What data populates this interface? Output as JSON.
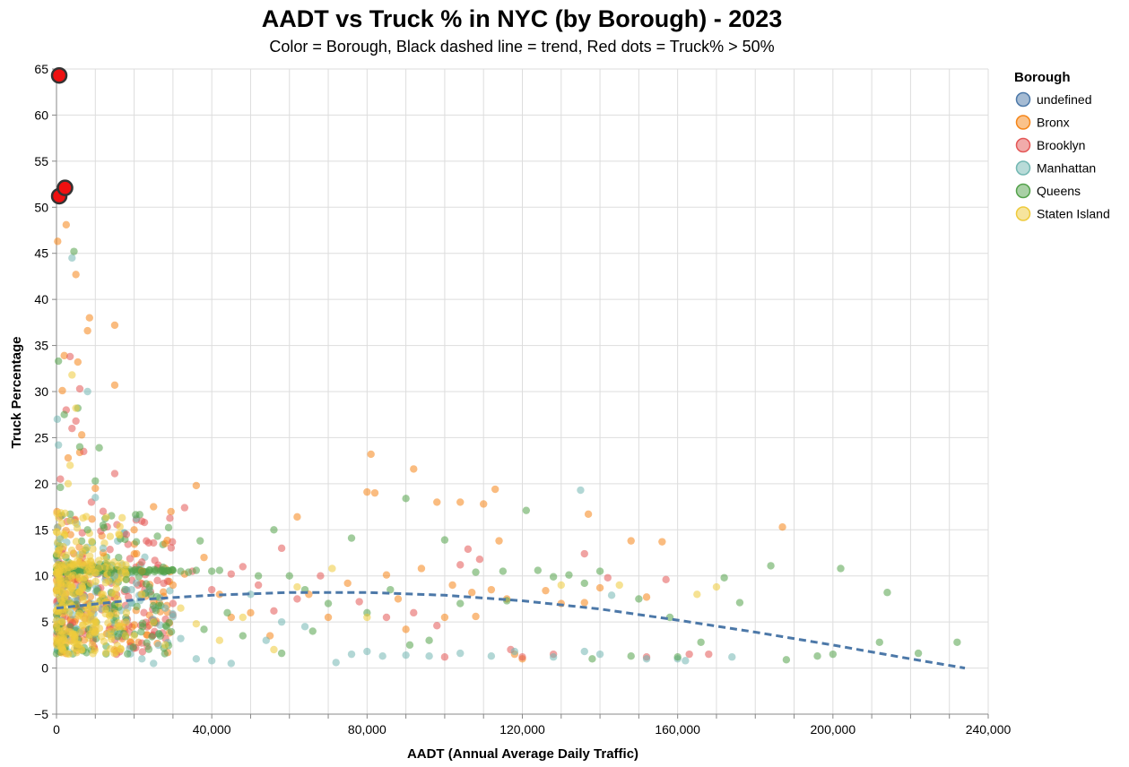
{
  "chart_data": {
    "type": "scatter",
    "title": "AADT vs Truck % in NYC (by Borough) - 2023",
    "subtitle": "Color = Borough, Black dashed line = trend, Red dots = Truck% > 50%",
    "xlabel": "AADT (Annual Average Daily Traffic)",
    "ylabel": "Truck Percentage",
    "xlim": [
      0,
      240000
    ],
    "ylim": [
      -5,
      65
    ],
    "x_ticks": [
      0,
      40000,
      80000,
      120000,
      160000,
      200000,
      240000
    ],
    "x_tick_labels": [
      "0",
      "40,000",
      "80,000",
      "120,000",
      "160,000",
      "200,000",
      "240,000"
    ],
    "y_ticks": [
      -5,
      0,
      5,
      10,
      15,
      20,
      25,
      30,
      35,
      40,
      45,
      50,
      55,
      60,
      65
    ],
    "y_tick_labels": [
      "−5",
      "0",
      "5",
      "10",
      "15",
      "20",
      "25",
      "30",
      "35",
      "40",
      "45",
      "50",
      "55",
      "60",
      "65"
    ],
    "grid": true,
    "legend_title": "Borough",
    "legend_position": "right",
    "series": [
      {
        "name": "undefined",
        "color": "#4c78a8",
        "points": []
      },
      {
        "name": "Bronx",
        "color": "#f58518",
        "points": [
          [
            300,
            46.3
          ],
          [
            1500,
            30.1
          ],
          [
            2000,
            33.9
          ],
          [
            2500,
            48.1
          ],
          [
            3000,
            22.8
          ],
          [
            5000,
            42.7
          ],
          [
            5500,
            33.2
          ],
          [
            6000,
            23.4
          ],
          [
            6500,
            25.3
          ],
          [
            8000,
            36.6
          ],
          [
            8500,
            38.0
          ],
          [
            10000,
            19.5
          ],
          [
            12000,
            12.5
          ],
          [
            15000,
            37.2
          ],
          [
            15000,
            30.7
          ],
          [
            20000,
            15.0
          ],
          [
            22000,
            10.5
          ],
          [
            25000,
            17.5
          ],
          [
            28000,
            13.5
          ],
          [
            30000,
            9.0
          ],
          [
            33000,
            10.2
          ],
          [
            36000,
            19.8
          ],
          [
            38000,
            12.0
          ],
          [
            42000,
            8.0
          ],
          [
            45000,
            5.5
          ],
          [
            50000,
            6.0
          ],
          [
            55000,
            3.5
          ],
          [
            62000,
            16.4
          ],
          [
            65000,
            8.0
          ],
          [
            70000,
            5.5
          ],
          [
            75000,
            9.2
          ],
          [
            80000,
            19.1
          ],
          [
            81000,
            23.2
          ],
          [
            82000,
            19.0
          ],
          [
            85000,
            10.1
          ],
          [
            88000,
            7.5
          ],
          [
            90000,
            4.2
          ],
          [
            92000,
            21.6
          ],
          [
            94000,
            10.8
          ],
          [
            98000,
            18.0
          ],
          [
            100000,
            5.5
          ],
          [
            102000,
            9.0
          ],
          [
            104000,
            18.0
          ],
          [
            107000,
            8.2
          ],
          [
            108000,
            5.6
          ],
          [
            110000,
            17.8
          ],
          [
            112000,
            8.5
          ],
          [
            113000,
            19.4
          ],
          [
            114000,
            13.8
          ],
          [
            116000,
            7.5
          ],
          [
            118000,
            1.5
          ],
          [
            120000,
            1.0
          ],
          [
            126000,
            8.4
          ],
          [
            130000,
            7.0
          ],
          [
            136000,
            7.1
          ],
          [
            137000,
            16.7
          ],
          [
            140000,
            8.7
          ],
          [
            148000,
            13.8
          ],
          [
            152000,
            7.7
          ],
          [
            156000,
            13.7
          ],
          [
            187000,
            15.3
          ]
        ]
      },
      {
        "name": "Brooklyn",
        "color": "#e45756",
        "points": [
          [
            1000,
            20.5
          ],
          [
            2500,
            28.0
          ],
          [
            3500,
            33.8
          ],
          [
            4000,
            26.0
          ],
          [
            5000,
            26.8
          ],
          [
            6000,
            30.3
          ],
          [
            7000,
            23.5
          ],
          [
            9000,
            18.0
          ],
          [
            12000,
            17.0
          ],
          [
            15000,
            21.1
          ],
          [
            18000,
            14.5
          ],
          [
            22000,
            11.5
          ],
          [
            26000,
            9.5
          ],
          [
            30000,
            7.0
          ],
          [
            33000,
            17.4
          ],
          [
            35000,
            10.5
          ],
          [
            40000,
            8.5
          ],
          [
            45000,
            10.2
          ],
          [
            48000,
            11.0
          ],
          [
            52000,
            9.0
          ],
          [
            56000,
            6.2
          ],
          [
            58000,
            13.0
          ],
          [
            62000,
            7.5
          ],
          [
            68000,
            10.0
          ],
          [
            78000,
            7.2
          ],
          [
            85000,
            5.5
          ],
          [
            92000,
            6.0
          ],
          [
            98000,
            4.6
          ],
          [
            100000,
            1.2
          ],
          [
            104000,
            11.2
          ],
          [
            106000,
            12.9
          ],
          [
            109000,
            11.8
          ],
          [
            117000,
            2.0
          ],
          [
            120000,
            1.2
          ],
          [
            128000,
            1.5
          ],
          [
            136000,
            12.4
          ],
          [
            142000,
            9.8
          ],
          [
            152000,
            1.2
          ],
          [
            157000,
            9.6
          ],
          [
            163000,
            1.5
          ],
          [
            168000,
            1.5
          ]
        ]
      },
      {
        "name": "Manhattan",
        "color": "#72b7b2",
        "points": [
          [
            200,
            27.0
          ],
          [
            500,
            24.2
          ],
          [
            1000,
            14.0
          ],
          [
            4000,
            44.5
          ],
          [
            8000,
            30.0
          ],
          [
            10000,
            18.5
          ],
          [
            12000,
            13.0
          ],
          [
            15000,
            10.0
          ],
          [
            18000,
            8.5
          ],
          [
            22000,
            1.0
          ],
          [
            25000,
            0.5
          ],
          [
            28000,
            6.5
          ],
          [
            32000,
            3.2
          ],
          [
            36000,
            1.0
          ],
          [
            40000,
            0.8
          ],
          [
            45000,
            0.5
          ],
          [
            50000,
            8.0
          ],
          [
            54000,
            3.0
          ],
          [
            58000,
            5.0
          ],
          [
            64000,
            4.5
          ],
          [
            72000,
            0.6
          ],
          [
            76000,
            1.5
          ],
          [
            80000,
            1.8
          ],
          [
            84000,
            1.3
          ],
          [
            90000,
            1.4
          ],
          [
            96000,
            1.3
          ],
          [
            104000,
            1.6
          ],
          [
            112000,
            1.3
          ],
          [
            118000,
            1.8
          ],
          [
            128000,
            1.2
          ],
          [
            135000,
            19.3
          ],
          [
            136000,
            1.8
          ],
          [
            140000,
            1.5
          ],
          [
            143000,
            7.9
          ],
          [
            152000,
            1.0
          ],
          [
            160000,
            1.0
          ],
          [
            162000,
            0.8
          ],
          [
            174000,
            1.2
          ]
        ]
      },
      {
        "name": "Queens",
        "color": "#54a24b",
        "points": [
          [
            500,
            33.3
          ],
          [
            1000,
            19.6
          ],
          [
            2000,
            27.5
          ],
          [
            4500,
            45.2
          ],
          [
            5500,
            28.2
          ],
          [
            6000,
            24.0
          ],
          [
            8000,
            15.0
          ],
          [
            10000,
            20.3
          ],
          [
            11000,
            23.9
          ],
          [
            12000,
            15.5
          ],
          [
            14000,
            10.3
          ],
          [
            16000,
            12.0
          ],
          [
            18000,
            9.6
          ],
          [
            20000,
            10.6
          ],
          [
            22000,
            10.4
          ],
          [
            24000,
            10.6
          ],
          [
            26000,
            14.3
          ],
          [
            28000,
            10.5
          ],
          [
            30000,
            10.6
          ],
          [
            32000,
            10.5
          ],
          [
            34000,
            10.4
          ],
          [
            36000,
            10.6
          ],
          [
            37000,
            13.8
          ],
          [
            38000,
            4.2
          ],
          [
            40000,
            10.5
          ],
          [
            42000,
            10.6
          ],
          [
            44000,
            6.0
          ],
          [
            48000,
            3.5
          ],
          [
            52000,
            10.0
          ],
          [
            56000,
            15.0
          ],
          [
            58000,
            1.6
          ],
          [
            60000,
            10.0
          ],
          [
            64000,
            8.5
          ],
          [
            66000,
            4.0
          ],
          [
            70000,
            7.0
          ],
          [
            76000,
            14.1
          ],
          [
            80000,
            6.0
          ],
          [
            86000,
            8.5
          ],
          [
            90000,
            18.4
          ],
          [
            91000,
            2.5
          ],
          [
            96000,
            3.0
          ],
          [
            100000,
            13.9
          ],
          [
            104000,
            7.0
          ],
          [
            108000,
            10.4
          ],
          [
            115000,
            10.5
          ],
          [
            116000,
            7.3
          ],
          [
            121000,
            17.1
          ],
          [
            124000,
            10.6
          ],
          [
            128000,
            9.9
          ],
          [
            132000,
            10.1
          ],
          [
            136000,
            9.2
          ],
          [
            138000,
            1.0
          ],
          [
            140000,
            10.5
          ],
          [
            148000,
            1.3
          ],
          [
            150000,
            7.5
          ],
          [
            158000,
            5.5
          ],
          [
            160000,
            1.2
          ],
          [
            166000,
            2.8
          ],
          [
            172000,
            9.8
          ],
          [
            176000,
            7.1
          ],
          [
            184000,
            11.1
          ],
          [
            188000,
            0.9
          ],
          [
            196000,
            1.3
          ],
          [
            200000,
            1.5
          ],
          [
            202000,
            10.8
          ],
          [
            212000,
            2.8
          ],
          [
            214000,
            8.2
          ],
          [
            222000,
            1.6
          ],
          [
            232000,
            2.8
          ]
        ]
      },
      {
        "name": "Staten Island",
        "color": "#eeca3b",
        "points": [
          [
            500,
            10.0
          ],
          [
            1000,
            7.5
          ],
          [
            1500,
            5.0
          ],
          [
            2000,
            3.0
          ],
          [
            3000,
            20.0
          ],
          [
            3500,
            22.0
          ],
          [
            4000,
            31.8
          ],
          [
            5000,
            28.2
          ],
          [
            6000,
            12.0
          ],
          [
            7000,
            9.5
          ],
          [
            8000,
            7.0
          ],
          [
            9000,
            6.0
          ],
          [
            10000,
            5.0
          ],
          [
            12000,
            8.0
          ],
          [
            14000,
            4.0
          ],
          [
            16000,
            7.0
          ],
          [
            18000,
            6.0
          ],
          [
            20000,
            3.5
          ],
          [
            22000,
            8.0
          ],
          [
            25000,
            5.0
          ],
          [
            28000,
            2.5
          ],
          [
            32000,
            6.5
          ],
          [
            36000,
            4.8
          ],
          [
            42000,
            3.0
          ],
          [
            48000,
            5.5
          ],
          [
            56000,
            2.0
          ],
          [
            62000,
            8.8
          ],
          [
            71000,
            10.8
          ],
          [
            80000,
            5.5
          ],
          [
            130000,
            9.0
          ],
          [
            145000,
            9.0
          ],
          [
            165000,
            8.0
          ],
          [
            170000,
            8.8
          ]
        ]
      }
    ],
    "dense_cluster": {
      "description_points_per_borough": "dense cluster near AADT 0-30,000 and Truck% 0-17",
      "xlim": [
        0,
        30000
      ],
      "ylim": [
        0,
        17
      ]
    },
    "highlight": {
      "label": "Truck% > 50%",
      "color": "#ee1111",
      "points": [
        [
          700,
          64.3
        ],
        [
          700,
          51.2
        ],
        [
          2200,
          52.1
        ]
      ]
    },
    "trend": {
      "color": "#4c78a8",
      "style": "dashed",
      "points": [
        [
          0,
          6.5
        ],
        [
          20000,
          7.4
        ],
        [
          40000,
          7.9
        ],
        [
          60000,
          8.2
        ],
        [
          80000,
          8.2
        ],
        [
          100000,
          7.9
        ],
        [
          120000,
          7.3
        ],
        [
          140000,
          6.4
        ],
        [
          160000,
          5.2
        ],
        [
          180000,
          3.9
        ],
        [
          200000,
          2.5
        ],
        [
          220000,
          1.0
        ],
        [
          234000,
          0.0
        ]
      ]
    }
  }
}
